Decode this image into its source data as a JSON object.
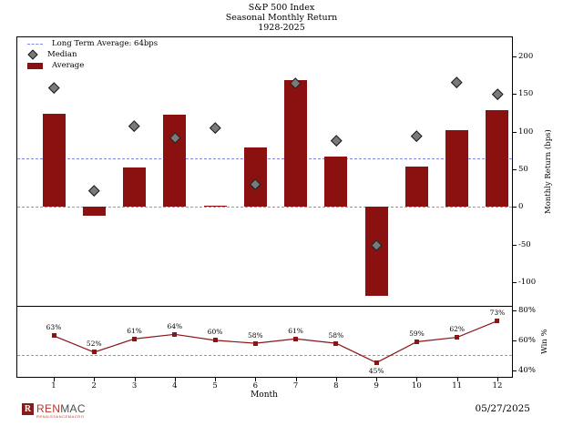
{
  "title": {
    "line1": "S&P 500 Index",
    "line2": "Seasonal Monthly Return",
    "line3": "1928-2025"
  },
  "legend": {
    "long_term_average": "Long Term Average: 64bps",
    "median": "Median",
    "average": "Average"
  },
  "axes": {
    "x": {
      "label": "Month"
    },
    "right_top": {
      "label": "Monthly Return (bps)"
    },
    "right_bottom": {
      "label": "Win %"
    }
  },
  "colors": {
    "bar": "#8b1010",
    "median_fill": "#7a7a7a",
    "median_edge": "#1a1a1a",
    "long_term_line": "#8585e6",
    "zero_line": "#999999",
    "fifty_line": "#999999",
    "win_line": "#8c1414",
    "frame": "#000000",
    "logo_red": "#8b1a1a",
    "logo_text_red": "#b2392e",
    "logo_text_gray": "#4d4d4d"
  },
  "chart_data": [
    {
      "type": "bar",
      "title": "S&P 500 Index Seasonal Monthly Return 1928-2025",
      "categories": [
        1,
        2,
        3,
        4,
        5,
        6,
        7,
        8,
        9,
        10,
        11,
        12
      ],
      "series": [
        {
          "name": "Average",
          "type": "bar",
          "values": [
            124,
            -11,
            52,
            123,
            2,
            79,
            168,
            67,
            -118,
            54,
            102,
            129
          ]
        },
        {
          "name": "Median",
          "type": "scatter-diamond",
          "values": [
            158,
            22,
            107,
            92,
            105,
            30,
            164,
            88,
            -50,
            94,
            166,
            150
          ]
        }
      ],
      "long_term_average_bps": 64,
      "reference_lines": [
        {
          "label": "Long Term Average: 64bps",
          "value": 64,
          "style": "dashed-blue"
        },
        {
          "label": "zero",
          "value": 0,
          "style": "dashed-gray"
        }
      ],
      "xlabel": "Month",
      "ylabel": "Monthly Return (bps)",
      "ylim": [
        -131,
        225
      ],
      "yticks": [
        200,
        150,
        100,
        50,
        0,
        -50,
        -100
      ],
      "legend_position": "upper-left",
      "grid": false
    },
    {
      "type": "line",
      "categories": [
        1,
        2,
        3,
        4,
        5,
        6,
        7,
        8,
        9,
        10,
        11,
        12
      ],
      "values": [
        63,
        52,
        61,
        64,
        60,
        58,
        61,
        58,
        45,
        59,
        62,
        73
      ],
      "point_labels": [
        "63%",
        "52%",
        "61%",
        "64%",
        "60%",
        "58%",
        "61%",
        "58%",
        "45%",
        "59%",
        "62%",
        "73%"
      ],
      "xlabel": "Month",
      "ylabel": "Win %",
      "ylim": [
        35.5,
        82.5
      ],
      "yticks": [
        80,
        60,
        40
      ],
      "ytick_labels": [
        "80%",
        "60%",
        "40%"
      ],
      "reference_line": 50,
      "grid": false
    }
  ],
  "footer": {
    "logo_r": "R",
    "logo_ren": "REN",
    "logo_mac": "MAC",
    "logo_sub": "RENAISSANCEMACRO",
    "date": "05/27/2025"
  }
}
